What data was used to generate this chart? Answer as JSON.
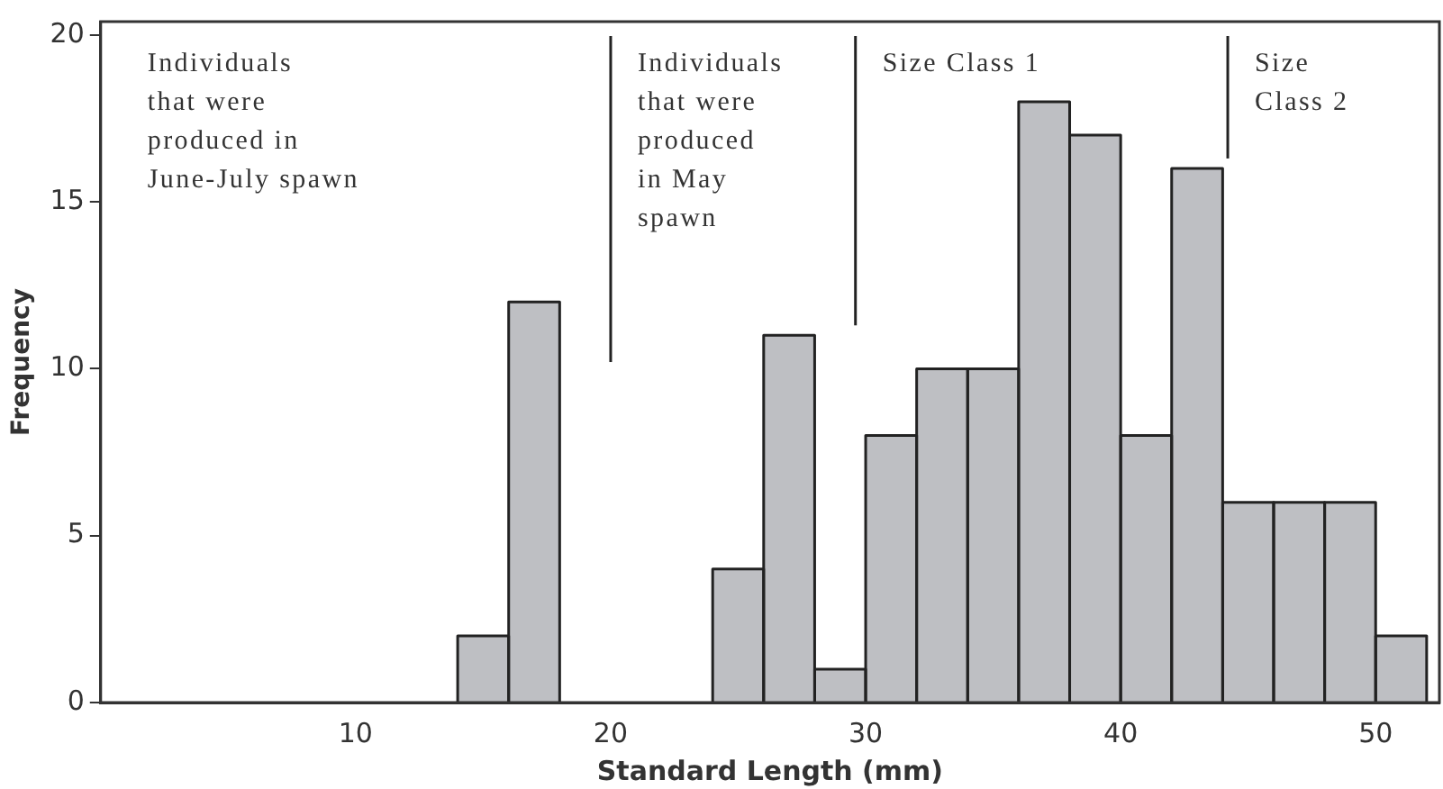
{
  "chart_data": {
    "type": "histogram",
    "xlabel": "Standard Length (mm)",
    "ylabel": "Frequency",
    "bins": [
      14,
      16,
      18,
      20,
      22,
      24,
      26,
      28,
      30,
      32,
      34,
      36,
      38,
      40,
      42,
      44,
      46,
      48,
      50,
      52
    ],
    "values": [
      2,
      12,
      0,
      0,
      0,
      4,
      11,
      1,
      8,
      10,
      10,
      18,
      17,
      8,
      16,
      6,
      6,
      6,
      2
    ],
    "color": "#bebfc3",
    "xlim": [
      0,
      52.5
    ],
    "xticks": [
      10,
      20,
      30,
      40,
      50
    ],
    "ylim": [
      0,
      20.4
    ],
    "yticks": [
      0,
      5,
      10,
      15,
      20
    ],
    "grid": false,
    "legend": false,
    "ref_lines": [
      {
        "axis": "x",
        "value": 20,
        "color": "#222222"
      },
      {
        "axis": "x",
        "value": 29.6,
        "color": "#222222"
      },
      {
        "axis": "x",
        "value": 44.2,
        "color": "#222222"
      }
    ],
    "annotations": [
      "Individuals\nthat were\nproduced in\nJune-July spawn",
      "Individuals\nthat were\nproduced\nin May\nspawn",
      "Size Class 1",
      "Size\nClass 2"
    ]
  }
}
